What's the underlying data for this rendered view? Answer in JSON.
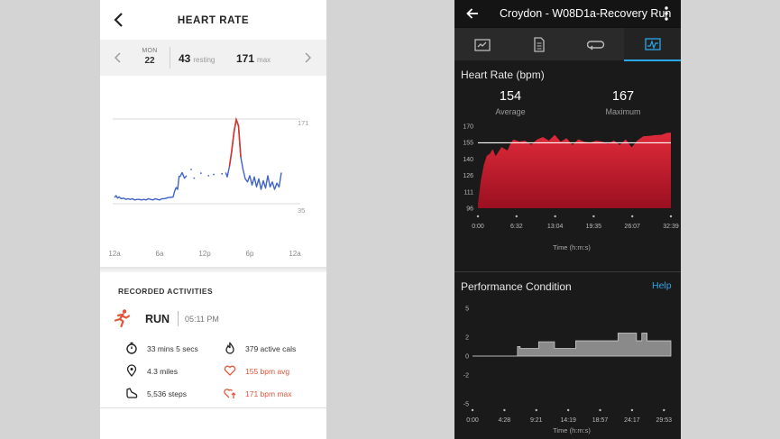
{
  "left_app": {
    "title": "HEART RATE",
    "date": {
      "day_of_week": "MON",
      "day": "22"
    },
    "resting": {
      "value": "43",
      "label": "resting"
    },
    "max": {
      "value": "171",
      "label": "max"
    },
    "colors": {
      "accent": "#e0573a",
      "line_blue": "#3f63c7",
      "line_red": "#d9342b"
    },
    "recorded_title": "RECORDED ACTIVITIES",
    "activity": {
      "name": "RUN",
      "time": "05:11 PM",
      "duration": "33 mins 5 secs",
      "active_cals": "379 active cals",
      "distance": "4.3 miles",
      "avg_bpm": "155 bpm avg",
      "steps": "5,536 steps",
      "max_bpm": "171 bpm max"
    },
    "icons": [
      "back-arrow-icon",
      "chevron-left-icon",
      "chevron-right-icon",
      "run-icon",
      "stopwatch-icon",
      "flame-icon",
      "location-pin-icon",
      "heart-icon",
      "shoe-icon",
      "heart-up-icon"
    ]
  },
  "right_app": {
    "title": "Croydon - W08D1a-Recovery Run",
    "tabs": [
      "summary-icon",
      "details-icon",
      "laps-icon",
      "charts-icon"
    ],
    "active_tab": 3,
    "hr_title": "Heart Rate (bpm)",
    "average": {
      "value": "154",
      "label": "Average"
    },
    "maximum": {
      "value": "167",
      "label": "Maximum"
    },
    "pc_title": "Performance Condition",
    "help": "Help",
    "colors": {
      "accent": "#2aa7e8",
      "hr_fill": "#d31f30",
      "pc_fill": "#8a8a8a"
    }
  },
  "chart_data": [
    {
      "type": "line",
      "title": "",
      "x_ticks": [
        "12a",
        "6a",
        "12p",
        "6p",
        "12a"
      ],
      "y_ticks": [
        "171",
        "35"
      ],
      "ylim": [
        35,
        171
      ],
      "xlim": [
        0,
        24
      ],
      "series": [
        {
          "x": [
            0.0,
            0.2,
            0.4,
            0.6,
            0.9,
            1.2,
            1.5,
            1.8,
            2.1,
            2.4,
            2.7,
            3.0,
            3.3,
            3.6,
            3.9,
            4.2,
            4.5,
            4.8,
            5.1,
            5.4,
            5.7,
            6.0,
            6.3,
            6.6,
            6.9,
            7.2,
            7.5,
            7.8,
            8.0,
            8.2,
            8.4,
            8.6
          ],
          "y": [
            45,
            48,
            44,
            46,
            43,
            44,
            42,
            43,
            42,
            43,
            41,
            42,
            42,
            41,
            42,
            41,
            43,
            42,
            41,
            43,
            42,
            41,
            43,
            43,
            44,
            45,
            45,
            46,
            55,
            61,
            58,
            80
          ]
        },
        {
          "x": [
            8.7,
            9.0,
            9.3,
            9.6
          ],
          "y": [
            78,
            85,
            76,
            80
          ]
        },
        {
          "x": [
            14.8,
            15.0,
            15.3,
            15.6,
            15.9,
            16.2,
            16.5,
            16.8,
            17.1,
            17.4,
            17.7,
            18.0,
            18.3,
            18.6,
            18.9,
            19.2,
            19.5,
            19.8,
            20.1,
            20.4,
            20.7,
            21.0,
            21.3,
            21.6,
            21.9,
            22.2
          ],
          "y": [
            85,
            78,
            95,
            120,
            150,
            170,
            160,
            110,
            90,
            75,
            70,
            80,
            65,
            78,
            62,
            75,
            58,
            72,
            60,
            80,
            62,
            70,
            58,
            68,
            62,
            85
          ]
        }
      ]
    },
    {
      "type": "area",
      "title": "Heart Rate (bpm)",
      "xlabel": "Time (h:m:s)",
      "x_ticks": [
        "0:00",
        "6:32",
        "13:04",
        "19:35",
        "26:07",
        "32:39"
      ],
      "y_ticks": [
        "170",
        "155",
        "140",
        "126",
        "111",
        "96"
      ],
      "ylim": [
        96,
        170
      ],
      "reference_line": 155,
      "x_minutes": [
        0,
        0.5,
        1,
        1.5,
        2,
        2.5,
        3,
        4,
        5,
        5.5,
        6,
        7,
        8,
        9,
        10,
        11,
        12,
        13,
        14,
        15,
        16,
        17,
        18,
        19,
        20,
        21,
        22,
        23,
        24,
        25,
        26,
        27,
        28,
        29,
        30,
        31,
        32,
        32.65
      ],
      "values": [
        100,
        120,
        135,
        142,
        145,
        148,
        143,
        150,
        148,
        153,
        158,
        155,
        157,
        152,
        158,
        159,
        157,
        161,
        156,
        158,
        153,
        157,
        156,
        154,
        157,
        155,
        154,
        156,
        153,
        157,
        151,
        156,
        161,
        160,
        162,
        161,
        164,
        163
      ]
    },
    {
      "type": "area",
      "title": "Performance Condition",
      "xlabel": "Time (h:m:s)",
      "x_ticks": [
        "0:00",
        "4:28",
        "9:21",
        "14:19",
        "18:57",
        "24:17",
        "29:53"
      ],
      "y_ticks": [
        "5",
        "2",
        "0",
        "-2",
        "-5"
      ],
      "ylim": [
        -5,
        5
      ],
      "steps": [
        [
          0,
          0
        ],
        [
          8.5,
          0
        ],
        [
          8.5,
          1
        ],
        [
          9,
          1
        ],
        [
          9,
          0.8
        ],
        [
          12.5,
          0.8
        ],
        [
          12.5,
          1.5
        ],
        [
          15.5,
          1.5
        ],
        [
          15.5,
          0.8
        ],
        [
          19.5,
          0.8
        ],
        [
          19.5,
          1.6
        ],
        [
          27.5,
          1.6
        ],
        [
          27.5,
          2.4
        ],
        [
          31,
          2.4
        ],
        [
          31,
          1.6
        ],
        [
          32,
          1.6
        ],
        [
          32,
          2.4
        ],
        [
          33,
          2.4
        ],
        [
          33,
          1.6
        ],
        [
          37.5,
          1.6
        ]
      ],
      "x_max_minutes": 37.5
    }
  ]
}
